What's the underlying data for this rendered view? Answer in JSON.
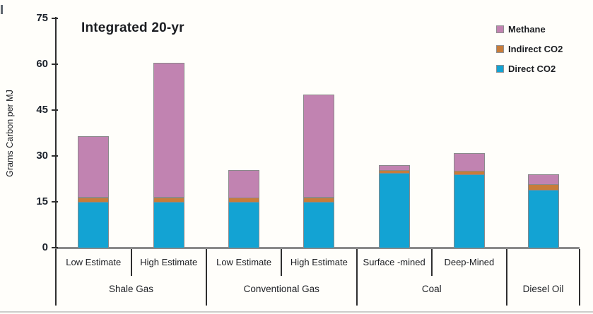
{
  "title": "Integrated 20-yr",
  "ylabel": "Grams Carbon per MJ",
  "legend": {
    "position": "top-right",
    "items": [
      {
        "label": "Methane",
        "color": "#c183b1"
      },
      {
        "label": "Indirect CO2",
        "color": "#c87c3a"
      },
      {
        "label": "Direct CO2",
        "color": "#13a3d3"
      }
    ]
  },
  "chart_data": {
    "type": "bar",
    "stacked": true,
    "title": "Integrated 20-yr",
    "xlabel": "",
    "ylabel": "Grams Carbon per MJ",
    "ylim": [
      0,
      75
    ],
    "yticks": [
      0,
      15,
      30,
      45,
      60,
      75
    ],
    "grid": false,
    "legend_position": "top-right",
    "groups": [
      {
        "label": "Shale Gas",
        "bars": [
          "Low Estimate",
          "High Estimate"
        ]
      },
      {
        "label": "Conventional Gas",
        "bars": [
          "Low Estimate",
          "High Estimate"
        ]
      },
      {
        "label": "Coal",
        "bars": [
          "Surface -mined",
          "Deep-Mined"
        ]
      },
      {
        "label": "Diesel Oil",
        "bars": [
          ""
        ]
      }
    ],
    "categories": [
      "Shale Gas - Low Estimate",
      "Shale Gas - High Estimate",
      "Conventional Gas - Low Estimate",
      "Conventional Gas - High Estimate",
      "Coal - Surface -mined",
      "Coal - Deep-Mined",
      "Diesel Oil"
    ],
    "series": [
      {
        "name": "Direct CO2",
        "color": "#13a3d3",
        "values": [
          15,
          15,
          15,
          15,
          24.5,
          24,
          19
        ]
      },
      {
        "name": "Indirect CO2",
        "color": "#c87c3a",
        "values": [
          1.5,
          1.5,
          1.5,
          1.5,
          1.0,
          1.2,
          1.7
        ]
      },
      {
        "name": "Methane",
        "color": "#c183b1",
        "values": [
          20,
          44,
          9,
          33.5,
          1.5,
          5.8,
          3.3
        ]
      }
    ],
    "totals": [
      36.5,
      60.5,
      25.5,
      50,
      27,
      31,
      24
    ],
    "units": "grams carbon per MJ"
  }
}
